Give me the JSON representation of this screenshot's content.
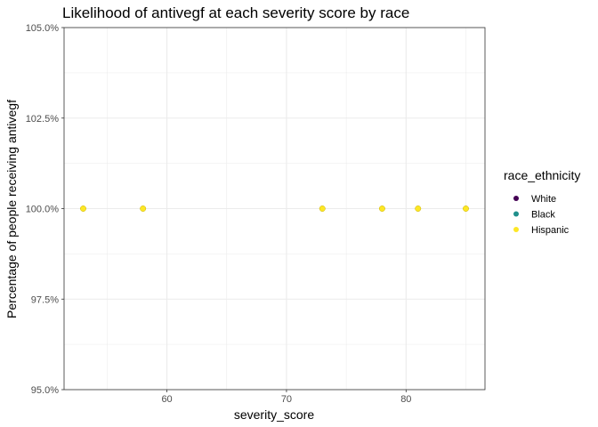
{
  "chart_data": {
    "type": "scatter",
    "title": "Likelihood of antivegf at each severity score by race",
    "xlabel": "severity_score",
    "ylabel": "Percentage of people receiving antivegf",
    "xlim": [
      51.4,
      86.6
    ],
    "ylim": [
      95.0,
      105.0
    ],
    "x_ticks": [
      60,
      70,
      80
    ],
    "x_minor_ticks": [
      55,
      65,
      75,
      85
    ],
    "y_ticks": [
      95.0,
      97.5,
      100.0,
      102.5,
      105.0
    ],
    "y_tick_labels": [
      "95.0%",
      "97.5%",
      "100.0%",
      "102.5%",
      "105.0%"
    ],
    "y_minor_ticks": [
      96.25,
      98.75,
      101.25,
      103.75
    ],
    "grid": true,
    "legend": {
      "title": "race_ethnicity",
      "position": "right",
      "entries": [
        {
          "name": "White",
          "color": "#440154"
        },
        {
          "name": "Black",
          "color": "#21908c"
        },
        {
          "name": "Hispanic",
          "color": "#fde725"
        }
      ]
    },
    "series": [
      {
        "name": "White",
        "color": "#440154",
        "points": []
      },
      {
        "name": "Black",
        "color": "#21908c",
        "points": []
      },
      {
        "name": "Hispanic",
        "color": "#fde725",
        "points": [
          {
            "x": 53,
            "y": 100.0
          },
          {
            "x": 58,
            "y": 100.0
          },
          {
            "x": 73,
            "y": 100.0
          },
          {
            "x": 78,
            "y": 100.0
          },
          {
            "x": 81,
            "y": 100.0
          },
          {
            "x": 85,
            "y": 100.0
          }
        ]
      }
    ]
  }
}
